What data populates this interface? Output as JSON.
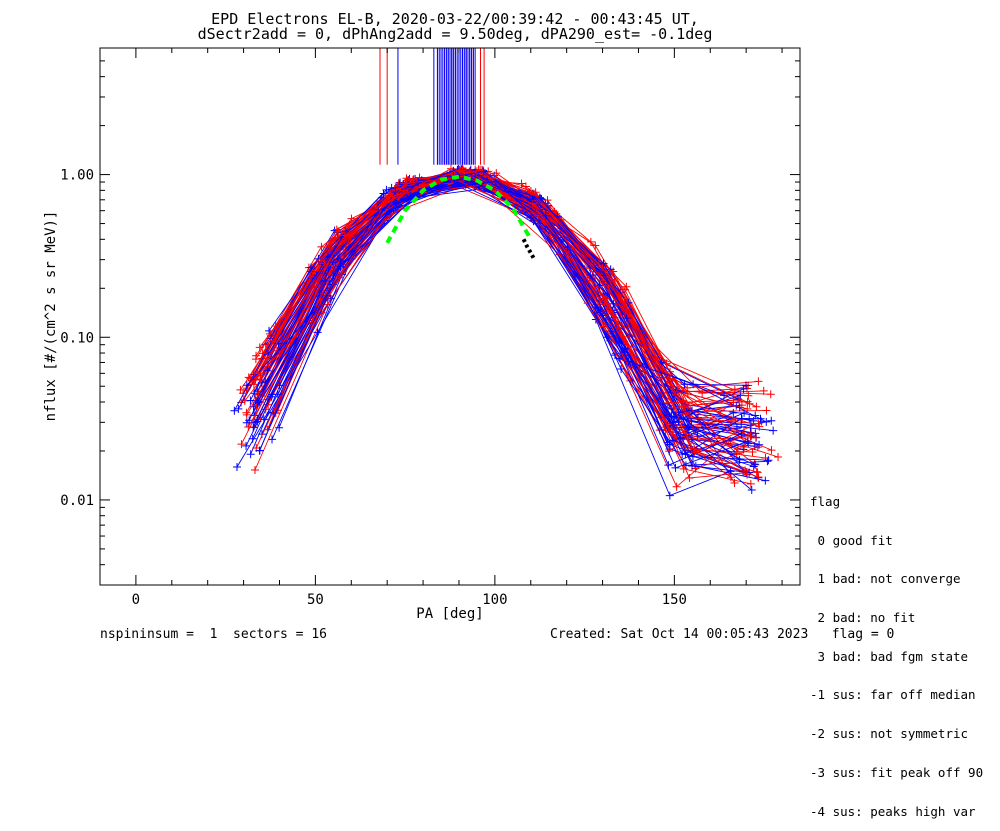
{
  "chart_data": {
    "type": "line",
    "title_line1": "EPD Electrons EL-B, 2020-03-22/00:39:42 - 00:43:45 UT,",
    "title_line2": "dSectr2add = 0, dPhAng2add = 9.50deg, dPA290_est=  -0.1deg",
    "xlabel": "PA [deg]",
    "ylabel": "nflux [#/(cm^2 s sr MeV)]",
    "xlim": [
      -10,
      185
    ],
    "ylim": [
      0.003,
      6.0
    ],
    "yscale": "log",
    "x_ticks": [
      0,
      50,
      100,
      150
    ],
    "x_tick_labels": [
      "0",
      "50",
      "100",
      "150"
    ],
    "y_ticks": [
      0.01,
      0.1,
      1.0
    ],
    "y_tick_labels": [
      "0.01",
      "0.10",
      "1.00"
    ],
    "series_colors": {
      "red": "#ff0000",
      "blue": "#0000ff",
      "fit": "#00ff00",
      "peak": "#000000"
    },
    "fit_curve": {
      "x": [
        70,
        75,
        80,
        85,
        90,
        95,
        100,
        105,
        110
      ],
      "y": [
        0.38,
        0.6,
        0.8,
        0.93,
        0.97,
        0.92,
        0.8,
        0.62,
        0.4
      ]
    },
    "peak_marker": {
      "x": [
        108,
        109,
        110,
        111
      ],
      "y": [
        0.4,
        0.36,
        0.33,
        0.3
      ]
    },
    "vertical_lines_red": [
      68,
      70,
      84,
      86,
      88,
      90,
      92,
      94,
      96,
      97
    ],
    "vertical_lines_blue": [
      73,
      83,
      85,
      87,
      88,
      89,
      90,
      91,
      92,
      93
    ],
    "vertical_line_top": 6.0,
    "vertical_line_bottom": 1.15
  },
  "legend": {
    "title": "flag",
    "items": [
      " 0 good fit",
      " 1 bad: not converge",
      " 2 bad: no fit",
      " 3 bad: bad fgm state",
      "-1 sus: far off median",
      "-2 sus: not symmetric",
      "-3 sus: fit peak off 90",
      "-4 sus: peaks high var"
    ]
  },
  "footer": {
    "left": "nspininsum =  1  sectors = 16",
    "right": "Created: Sat Oct 14 00:05:43 2023   flag = 0"
  }
}
